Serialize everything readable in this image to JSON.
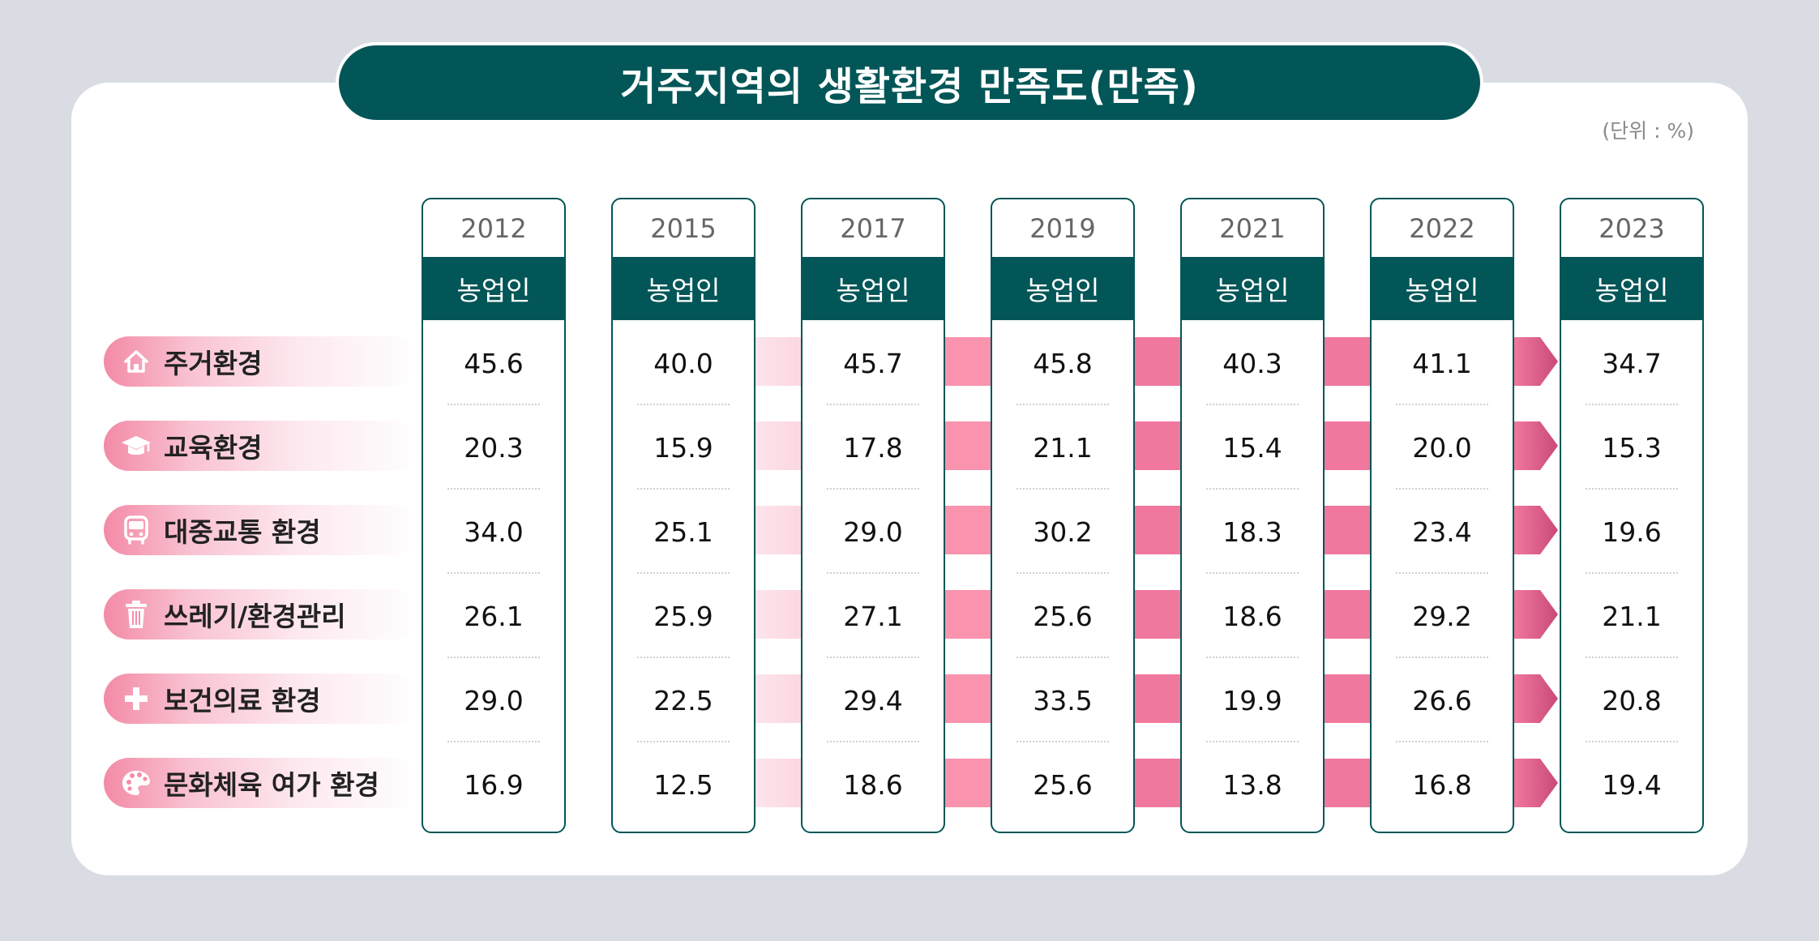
{
  "title": "거주지역의 생활환경 만족도(만족)",
  "unit": "(단위 : %)",
  "colors": {
    "header": "#035657",
    "band_light": "#fbd7e1",
    "band_mid": "#f993ae",
    "band_dark": "#f1789d",
    "arrow": "#c9497a"
  },
  "chart_data": {
    "type": "table",
    "group_label": "농업인",
    "years": [
      "2012",
      "2015",
      "2017",
      "2019",
      "2021",
      "2022",
      "2023"
    ],
    "rows": [
      {
        "label": "주거환경",
        "icon": "house-icon",
        "values": [
          45.6,
          40.0,
          45.7,
          45.8,
          40.3,
          41.1,
          34.7
        ]
      },
      {
        "label": "교육환경",
        "icon": "graduation-cap-icon",
        "values": [
          20.3,
          15.9,
          17.8,
          21.1,
          15.4,
          20.0,
          15.3
        ]
      },
      {
        "label": "대중교통 환경",
        "icon": "bus-icon",
        "values": [
          34.0,
          25.1,
          29.0,
          30.2,
          18.3,
          23.4,
          19.6
        ]
      },
      {
        "label": "쓰레기/환경관리",
        "icon": "trash-can-icon",
        "values": [
          26.1,
          25.9,
          27.1,
          25.6,
          18.6,
          29.2,
          21.1
        ]
      },
      {
        "label": "보건의료 환경",
        "icon": "medical-cross-icon",
        "values": [
          29.0,
          22.5,
          29.4,
          33.5,
          19.9,
          26.6,
          20.8
        ]
      },
      {
        "label": "문화체육 여가 환경",
        "icon": "palette-icon",
        "values": [
          16.9,
          12.5,
          18.6,
          25.6,
          13.8,
          16.8,
          19.4
        ]
      }
    ]
  }
}
